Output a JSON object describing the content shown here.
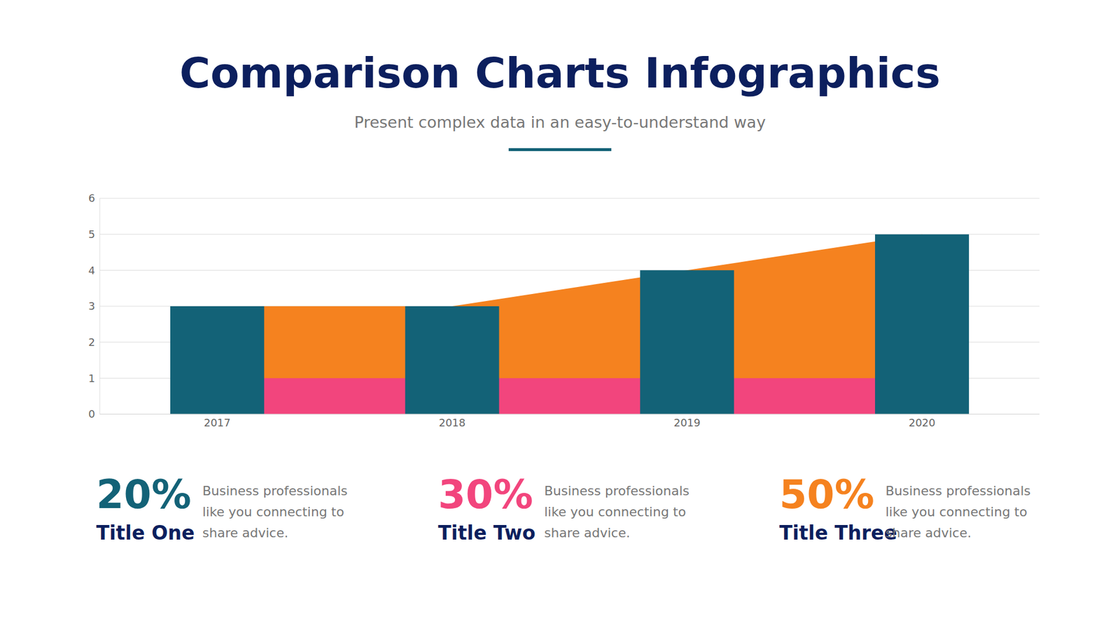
{
  "title": "Comparison Charts Infographics",
  "subtitle": "Present complex data in an easy-to-understand way",
  "chart_data": {
    "type": "bar",
    "categories": [
      "2017",
      "2018",
      "2019",
      "2020"
    ],
    "series": [
      {
        "type": "area",
        "color": "#f5821f",
        "values": [
          3,
          3,
          4,
          5
        ]
      },
      {
        "type": "area",
        "color": "#f2457d",
        "values": [
          1,
          1,
          1,
          1
        ]
      },
      {
        "type": "bar",
        "color": "#136277",
        "values": [
          3,
          3,
          4,
          5
        ]
      }
    ],
    "ylim": [
      0,
      6
    ],
    "yticks": [
      0,
      1,
      2,
      3,
      4,
      5,
      6
    ],
    "grid": true
  },
  "stats": [
    {
      "value": "20%",
      "title": "Title One",
      "text": "Business professionals like you connecting to share advice.",
      "color": "#136277"
    },
    {
      "value": "30%",
      "title": "Title Two",
      "text": "Business professionals like you connecting to share advice.",
      "color": "#f2457d"
    },
    {
      "value": "50%",
      "title": "Title Three",
      "text": "Business professionals like you connecting to share advice.",
      "color": "#f5821f"
    }
  ]
}
